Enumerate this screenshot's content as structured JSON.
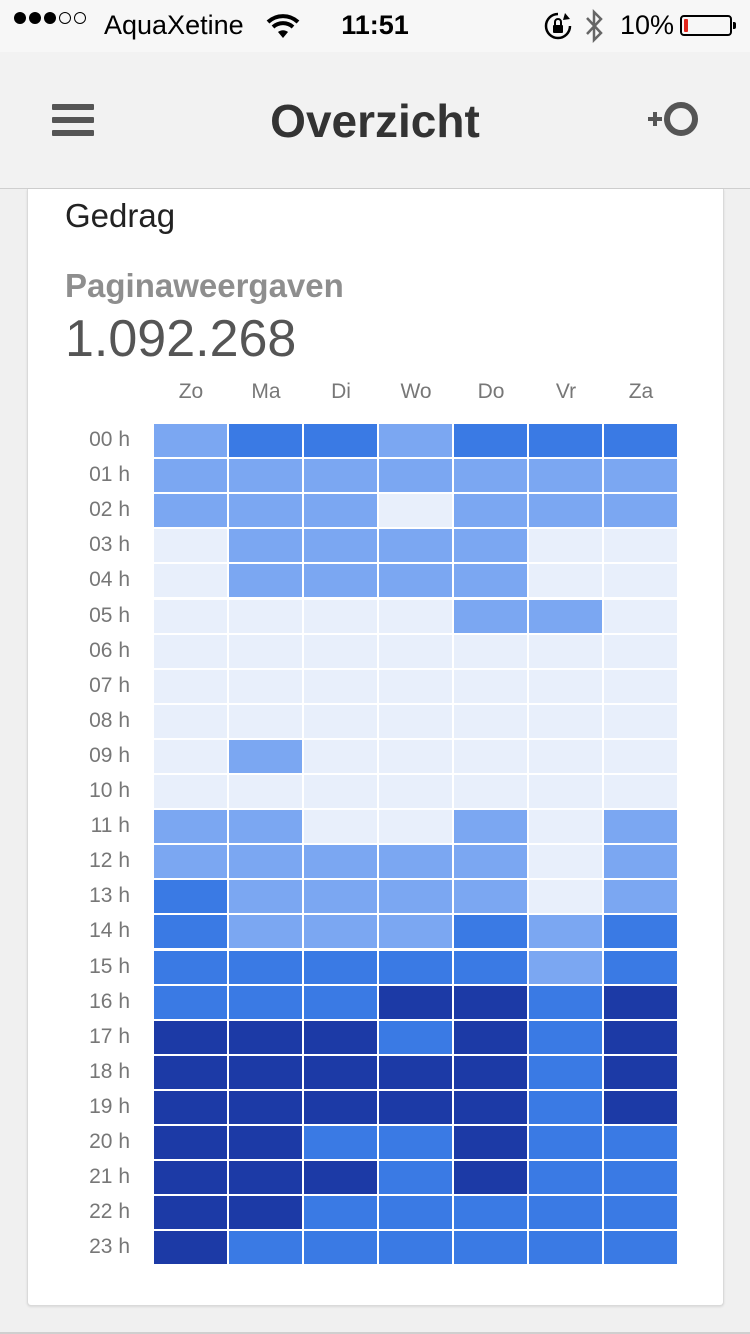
{
  "status_bar": {
    "carrier": "AquaXetine",
    "time": "11:51",
    "battery": "10%",
    "signal_bars_filled": 3,
    "signal_bars_total": 5,
    "battery_level": 0.1,
    "icons": [
      "wifi-icon",
      "rotation-lock-icon",
      "bluetooth-icon",
      "battery-icon"
    ],
    "battery_low_color": "#e2261c"
  },
  "app_bar": {
    "title": "Overzicht",
    "left_icon": "menu-icon",
    "right_icon": "add-segment-icon"
  },
  "card": {
    "section_title": "Gedrag",
    "metric_label": "Paginaweergaven",
    "metric_value": "1.092.268"
  },
  "chart_data": {
    "type": "heatmap",
    "columns": [
      "Zo",
      "Ma",
      "Di",
      "Wo",
      "Do",
      "Vr",
      "Za"
    ],
    "rows": [
      "00 h",
      "01 h",
      "02 h",
      "03 h",
      "04 h",
      "05 h",
      "06 h",
      "07 h",
      "08 h",
      "09 h",
      "10 h",
      "11 h",
      "12 h",
      "13 h",
      "14 h",
      "15 h",
      "16 h",
      "17 h",
      "18 h",
      "19 h",
      "20 h",
      "21 h",
      "22 h",
      "23 h"
    ],
    "levels": [
      [
        2,
        3,
        3,
        2,
        3,
        3,
        3
      ],
      [
        2,
        2,
        2,
        2,
        2,
        2,
        2
      ],
      [
        2,
        2,
        2,
        1,
        2,
        2,
        2
      ],
      [
        1,
        2,
        2,
        2,
        2,
        1,
        1
      ],
      [
        1,
        2,
        2,
        2,
        2,
        1,
        1
      ],
      [
        1,
        1,
        1,
        1,
        2,
        2,
        1
      ],
      [
        1,
        1,
        1,
        1,
        1,
        1,
        1
      ],
      [
        1,
        1,
        1,
        1,
        1,
        1,
        1
      ],
      [
        1,
        1,
        1,
        1,
        1,
        1,
        1
      ],
      [
        1,
        2,
        1,
        1,
        1,
        1,
        1
      ],
      [
        1,
        1,
        1,
        1,
        1,
        1,
        1
      ],
      [
        2,
        2,
        1,
        1,
        2,
        1,
        2
      ],
      [
        2,
        2,
        2,
        2,
        2,
        1,
        2
      ],
      [
        3,
        2,
        2,
        2,
        2,
        1,
        2
      ],
      [
        3,
        2,
        2,
        2,
        3,
        2,
        3
      ],
      [
        3,
        3,
        3,
        3,
        3,
        2,
        3
      ],
      [
        3,
        3,
        3,
        4,
        4,
        3,
        4
      ],
      [
        4,
        4,
        4,
        3,
        4,
        3,
        4
      ],
      [
        4,
        4,
        4,
        4,
        4,
        3,
        4
      ],
      [
        4,
        4,
        4,
        4,
        4,
        3,
        4
      ],
      [
        4,
        4,
        3,
        3,
        4,
        3,
        3
      ],
      [
        4,
        4,
        4,
        3,
        4,
        3,
        3
      ],
      [
        4,
        4,
        3,
        3,
        3,
        3,
        3
      ],
      [
        4,
        3,
        3,
        3,
        3,
        3,
        3
      ]
    ],
    "level_colors": {
      "1": "#e8effb",
      "2": "#7ba7f2",
      "3": "#3a7ae4",
      "4": "#1c3aa6"
    }
  }
}
